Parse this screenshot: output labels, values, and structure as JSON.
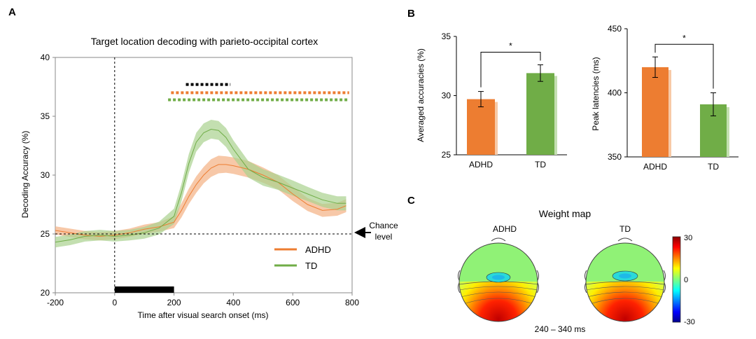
{
  "panels": {
    "a_label": "A",
    "b_label": "B",
    "c_label": "C"
  },
  "colors": {
    "adhd": "#ED7D31",
    "td": "#70AD47",
    "adhd_band": "#F4B183",
    "td_band": "#A9D18E",
    "sig_black": "#000000"
  },
  "chart_data": [
    {
      "id": "panel-a",
      "type": "line",
      "title": "Target location decoding with parieto-occipital cortex",
      "xlabel": "Time after visual search onset (ms)",
      "ylabel": "Decoding Accuracy (%)",
      "xlim": [
        -200,
        800
      ],
      "ylim": [
        20,
        40
      ],
      "xticks": [
        -200,
        0,
        200,
        400,
        600,
        800
      ],
      "yticks": [
        20,
        25,
        30,
        35,
        40
      ],
      "chance_level": 25,
      "chance_label_line1": "Chance",
      "chance_label_line2": "level",
      "stimulus_bar": [
        0,
        200
      ],
      "x": [
        -200,
        -150,
        -100,
        -50,
        0,
        50,
        100,
        150,
        200,
        225,
        250,
        275,
        300,
        325,
        350,
        375,
        400,
        450,
        500,
        550,
        600,
        650,
        700,
        750,
        780
      ],
      "series": [
        {
          "name": "ADHD",
          "values": [
            25.3,
            25.1,
            24.9,
            24.8,
            24.9,
            25.1,
            25.4,
            25.6,
            26.0,
            27.0,
            28.2,
            29.2,
            30.0,
            30.6,
            30.9,
            30.9,
            30.8,
            30.5,
            30.0,
            29.4,
            28.4,
            27.5,
            27.0,
            27.1,
            27.4
          ],
          "error": [
            0.35,
            0.35,
            0.35,
            0.35,
            0.35,
            0.35,
            0.4,
            0.4,
            0.5,
            0.6,
            0.65,
            0.7,
            0.7,
            0.75,
            0.75,
            0.7,
            0.7,
            0.7,
            0.65,
            0.6,
            0.6,
            0.55,
            0.55,
            0.55,
            0.55
          ]
        },
        {
          "name": "TD",
          "values": [
            24.3,
            24.5,
            24.8,
            24.9,
            24.8,
            24.9,
            25.1,
            25.5,
            26.5,
            28.5,
            31.0,
            32.8,
            33.6,
            33.9,
            33.8,
            33.2,
            32.2,
            30.5,
            29.8,
            29.4,
            28.9,
            28.4,
            27.9,
            27.6,
            27.6
          ],
          "error": [
            0.45,
            0.45,
            0.45,
            0.45,
            0.45,
            0.45,
            0.5,
            0.55,
            0.65,
            0.75,
            0.8,
            0.8,
            0.8,
            0.8,
            0.8,
            0.8,
            0.75,
            0.7,
            0.7,
            0.65,
            0.65,
            0.6,
            0.6,
            0.6,
            0.6
          ]
        }
      ],
      "significance": [
        {
          "name": "difference",
          "from": 240,
          "to": 390,
          "y": 37.7,
          "color": "#000000"
        },
        {
          "name": "ADHD",
          "from": 190,
          "to": 790,
          "y": 37.0,
          "color": "#ED7D31"
        },
        {
          "name": "TD",
          "from": 180,
          "to": 790,
          "y": 36.4,
          "color": "#70AD47"
        }
      ],
      "legend": [
        {
          "label": "ADHD",
          "color": "#ED7D31"
        },
        {
          "label": "TD",
          "color": "#70AD47"
        }
      ]
    },
    {
      "id": "panel-b-accuracy",
      "type": "bar",
      "categories": [
        "ADHD",
        "TD"
      ],
      "values": [
        29.7,
        31.9
      ],
      "errors": [
        0.65,
        0.7
      ],
      "ylabel": "Averaged accuracies (%)",
      "ylim": [
        25,
        35
      ],
      "yticks": [
        25,
        30,
        35
      ],
      "significance_label": "*"
    },
    {
      "id": "panel-b-latency",
      "type": "bar",
      "categories": [
        "ADHD",
        "TD"
      ],
      "values": [
        420,
        391
      ],
      "errors": [
        8,
        9
      ],
      "ylabel": "Peak latencies (ms)",
      "ylim": [
        350,
        450
      ],
      "yticks": [
        350,
        400,
        450
      ],
      "significance_label": "*"
    },
    {
      "id": "panel-c",
      "type": "heatmap",
      "title": "Weight map",
      "maps": [
        "ADHD",
        "TD"
      ],
      "time_window": "240 – 340 ms",
      "colorbar_ticks": [
        30,
        0,
        -30
      ]
    }
  ]
}
